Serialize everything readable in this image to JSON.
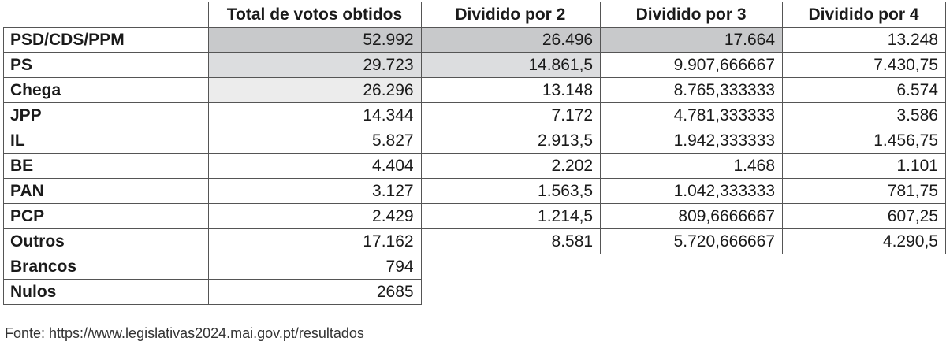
{
  "table": {
    "headers": [
      "",
      "Total de votos obtidos",
      "Dividido por 2",
      "Dividido por 3",
      "Dividido por 4"
    ],
    "rows": [
      {
        "party": "PSD/CDS/PPM",
        "values": [
          "52.992",
          "26.496",
          "17.664",
          "13.248"
        ],
        "highlight": [
          "#c8c9cb",
          "#c8c9cb",
          "#c8c9cb",
          ""
        ]
      },
      {
        "party": "PS",
        "values": [
          "29.723",
          "14.861,5",
          "9.907,666667",
          "7.430,75"
        ],
        "highlight": [
          "#dcdddf",
          "#dcdddf",
          "",
          ""
        ]
      },
      {
        "party": "Chega",
        "values": [
          "26.296",
          "13.148",
          "8.765,333333",
          "6.574"
        ],
        "highlight": [
          "#ececec",
          "",
          "",
          ""
        ]
      },
      {
        "party": "JPP",
        "values": [
          "14.344",
          "7.172",
          "4.781,333333",
          "3.586"
        ],
        "highlight": [
          "",
          "",
          "",
          ""
        ]
      },
      {
        "party": "IL",
        "values": [
          "5.827",
          "2.913,5",
          "1.942,333333",
          "1.456,75"
        ],
        "highlight": [
          "",
          "",
          "",
          ""
        ]
      },
      {
        "party": "BE",
        "values": [
          "4.404",
          "2.202",
          "1.468",
          "1.101"
        ],
        "highlight": [
          "",
          "",
          "",
          ""
        ]
      },
      {
        "party": "PAN",
        "values": [
          "3.127",
          "1.563,5",
          "1.042,333333",
          "781,75"
        ],
        "highlight": [
          "",
          "",
          "",
          ""
        ]
      },
      {
        "party": "PCP",
        "values": [
          "2.429",
          "1.214,5",
          "809,6666667",
          "607,25"
        ],
        "highlight": [
          "",
          "",
          "",
          ""
        ]
      },
      {
        "party": "Outros",
        "values": [
          "17.162",
          "8.581",
          "5.720,666667",
          "4.290,5"
        ],
        "highlight": [
          "",
          "",
          "",
          ""
        ]
      },
      {
        "party": "Brancos",
        "values": [
          "794"
        ],
        "highlight": [
          ""
        ]
      },
      {
        "party": "Nulos",
        "values": [
          "2685"
        ],
        "highlight": [
          ""
        ]
      }
    ]
  },
  "source": "Fonte: https://www.legislativas2024.mai.gov.pt/resultados"
}
